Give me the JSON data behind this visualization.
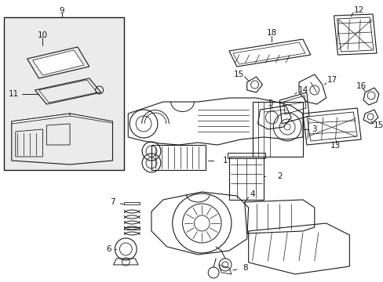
{
  "bg_color": "#ffffff",
  "line_color": "#1a1a1a",
  "box_fill": "#e8e8e8",
  "figsize": [
    4.89,
    3.6
  ],
  "dpi": 100,
  "label_fs": 7.5,
  "lw": 0.7
}
